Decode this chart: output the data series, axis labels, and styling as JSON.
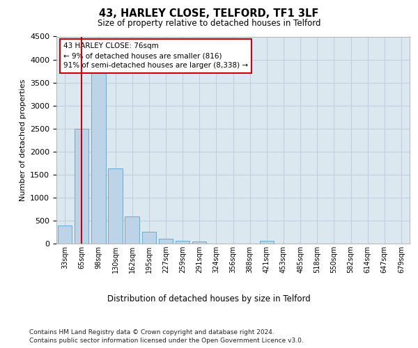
{
  "title1": "43, HARLEY CLOSE, TELFORD, TF1 3LF",
  "title2": "Size of property relative to detached houses in Telford",
  "xlabel": "Distribution of detached houses by size in Telford",
  "ylabel": "Number of detached properties",
  "categories": [
    "33sqm",
    "65sqm",
    "98sqm",
    "130sqm",
    "162sqm",
    "195sqm",
    "227sqm",
    "259sqm",
    "291sqm",
    "324sqm",
    "356sqm",
    "388sqm",
    "421sqm",
    "453sqm",
    "485sqm",
    "518sqm",
    "550sqm",
    "582sqm",
    "614sqm",
    "647sqm",
    "679sqm"
  ],
  "values": [
    390,
    2500,
    3740,
    1640,
    590,
    250,
    110,
    60,
    50,
    0,
    0,
    0,
    55,
    0,
    0,
    0,
    0,
    0,
    0,
    0,
    0
  ],
  "bar_color": "#bdd4e8",
  "bar_edge_color": "#6aaad4",
  "vline_x": 1.0,
  "vline_color": "#cc0000",
  "annotation_text": "43 HARLEY CLOSE: 76sqm\n← 9% of detached houses are smaller (816)\n91% of semi-detached houses are larger (8,338) →",
  "annotation_box_color": "#ffffff",
  "annotation_box_edge": "#cc0000",
  "ylim": [
    0,
    4500
  ],
  "yticks": [
    0,
    500,
    1000,
    1500,
    2000,
    2500,
    3000,
    3500,
    4000,
    4500
  ],
  "grid_color": "#c0d0e0",
  "background_color": "#dce8f0",
  "footer1": "Contains HM Land Registry data © Crown copyright and database right 2024.",
  "footer2": "Contains public sector information licensed under the Open Government Licence v3.0."
}
